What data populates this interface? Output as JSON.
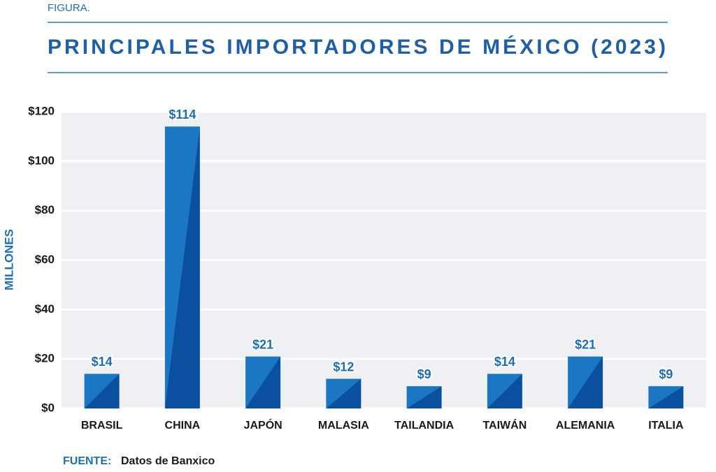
{
  "chart_data": {
    "type": "bar",
    "kicker": "FIGURA.",
    "title": "PRINCIPALES IMPORTADORES DE MÉXICO (2023)",
    "y_label": "MILLONES",
    "source_label": "FUENTE:",
    "source_text": "Datos de Banxico",
    "categories": [
      "BRASIL",
      "CHINA",
      "JAPÓN",
      "MALASIA",
      "TAILANDIA",
      "TAIWÁN",
      "ALEMANIA",
      "ITALIA"
    ],
    "values": [
      14,
      114,
      21,
      12,
      9,
      14,
      21,
      9
    ],
    "value_labels": [
      "$14",
      "$114",
      "$21",
      "$12",
      "$9",
      "$14",
      "$21",
      "$9"
    ],
    "color": "#1b76c4",
    "shade_color": "#0b4f9f",
    "ylim": [
      0,
      120
    ],
    "yticks": [
      {
        "value": 0,
        "label": "$0"
      },
      {
        "value": 20,
        "label": "$20"
      },
      {
        "value": 40,
        "label": "$40"
      },
      {
        "value": 60,
        "label": "$60"
      },
      {
        "value": 80,
        "label": "$80"
      },
      {
        "value": 100,
        "label": "$100"
      },
      {
        "value": 120,
        "label": "$120"
      }
    ],
    "grid": true
  }
}
